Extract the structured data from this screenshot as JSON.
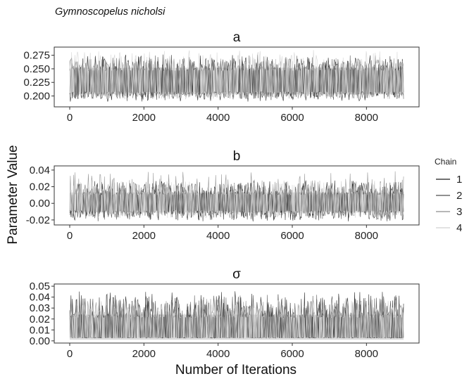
{
  "figure": {
    "subtitle": "Gymnoscopelus nicholsi",
    "xlabel": "Number of Iterations",
    "ylabel": "Parameter Value"
  },
  "legend": {
    "title": "Chain",
    "entries": [
      "1",
      "2",
      "3",
      "4"
    ],
    "colors": [
      "#1a1a1a",
      "#4d4d4d",
      "#8c8c8c",
      "#d0d0d0"
    ]
  },
  "chart_data": [
    {
      "type": "line",
      "title": "a",
      "xlim": [
        0,
        9000
      ],
      "ylim": [
        0.18,
        0.29
      ],
      "xticks": [
        0,
        2000,
        4000,
        6000,
        8000
      ],
      "yticks": [
        0.2,
        0.225,
        0.25,
        0.275
      ],
      "ytick_labels": [
        "0.200",
        "0.225",
        "0.250",
        "0.275"
      ],
      "band_center": 0.226,
      "band_low": 0.203,
      "band_high": 0.252,
      "series": [
        {
          "name": "1",
          "x_range": [
            0,
            9000
          ],
          "low": 0.185,
          "high": 0.282
        },
        {
          "name": "2",
          "x_range": [
            0,
            9000
          ],
          "low": 0.19,
          "high": 0.28
        },
        {
          "name": "3",
          "x_range": [
            0,
            9000
          ],
          "low": 0.19,
          "high": 0.275
        },
        {
          "name": "4",
          "x_range": [
            0,
            9000
          ],
          "low": 0.19,
          "high": 0.29
        }
      ]
    },
    {
      "type": "line",
      "title": "b",
      "xlim": [
        0,
        9000
      ],
      "ylim": [
        -0.026,
        0.045
      ],
      "xticks": [
        0,
        2000,
        4000,
        6000,
        8000
      ],
      "yticks": [
        -0.02,
        0,
        0.02,
        0.04
      ],
      "ytick_labels": [
        "-0.02",
        "0.00",
        "0.02",
        "0.04"
      ],
      "band_center": 0.0,
      "band_low": -0.011,
      "band_high": 0.013,
      "series": [
        {
          "name": "1",
          "x_range": [
            0,
            9000
          ],
          "low": -0.024,
          "high": 0.03
        },
        {
          "name": "2",
          "x_range": [
            0,
            9000
          ],
          "low": -0.022,
          "high": 0.028
        },
        {
          "name": "3",
          "x_range": [
            0,
            9000
          ],
          "low": -0.02,
          "high": 0.041
        },
        {
          "name": "4",
          "x_range": [
            0,
            9000
          ],
          "low": -0.02,
          "high": 0.03
        }
      ]
    },
    {
      "type": "line",
      "title": "σ",
      "xlim": [
        0,
        9000
      ],
      "ylim": [
        -0.002,
        0.052
      ],
      "xticks": [
        0,
        2000,
        4000,
        6000,
        8000
      ],
      "yticks": [
        0,
        0.01,
        0.02,
        0.03,
        0.04,
        0.05
      ],
      "ytick_labels": [
        "0.00",
        "0.01",
        "0.02",
        "0.03",
        "0.04",
        "0.05"
      ],
      "band_center": 0.011,
      "band_low": 0.001,
      "band_high": 0.024,
      "series": [
        {
          "name": "1",
          "x_range": [
            0,
            9000
          ],
          "low": 0.0005,
          "high": 0.048
        },
        {
          "name": "2",
          "x_range": [
            0,
            9000
          ],
          "low": 0.0005,
          "high": 0.045
        },
        {
          "name": "3",
          "x_range": [
            0,
            9000
          ],
          "low": 0.0005,
          "high": 0.042
        },
        {
          "name": "4",
          "x_range": [
            0,
            9000
          ],
          "low": 0.0005,
          "high": 0.04
        }
      ]
    }
  ]
}
